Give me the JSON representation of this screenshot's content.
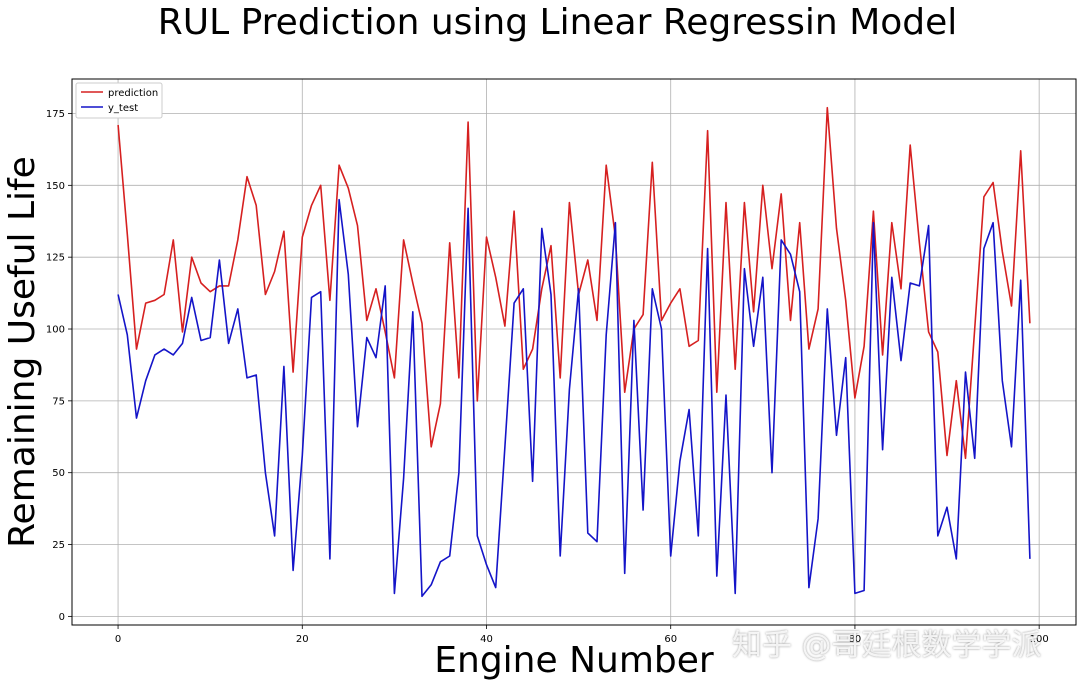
{
  "chart_data": {
    "type": "line",
    "title": "RUL Prediction using Linear Regressin Model",
    "xlabel": "Engine Number",
    "ylabel": "Remaining Useful Life",
    "xlim": [
      -5,
      104
    ],
    "ylim": [
      -3,
      187
    ],
    "x_ticks": [
      "0",
      "20",
      "40",
      "60",
      "80",
      "100"
    ],
    "y_ticks": [
      "0",
      "25",
      "50",
      "75",
      "100",
      "125",
      "150",
      "175"
    ],
    "grid": true,
    "legend_position": "upper-left",
    "series": [
      {
        "name": "prediction",
        "color": "#d62020",
        "values": [
          171,
          133,
          93,
          109,
          110,
          112,
          131,
          99,
          125,
          116,
          113,
          115,
          115,
          131,
          153,
          143,
          112,
          120,
          134,
          85,
          132,
          143,
          150,
          110,
          157,
          149,
          136,
          103,
          114,
          99,
          83,
          131,
          116,
          102,
          59,
          74,
          130,
          83,
          172,
          75,
          132,
          118,
          101,
          141,
          86,
          93,
          114,
          129,
          83,
          144,
          112,
          124,
          103,
          157,
          132,
          78,
          100,
          105,
          158,
          103,
          109,
          114,
          94,
          96,
          169,
          78,
          144,
          86,
          144,
          106,
          150,
          121,
          147,
          103,
          137,
          93,
          107,
          177,
          135,
          110,
          76,
          94,
          141,
          91,
          137,
          114,
          164,
          130,
          99,
          92,
          56,
          82,
          55,
          100,
          146,
          151,
          127,
          108,
          162,
          102
        ]
      },
      {
        "name": "y_test",
        "color": "#1414c8",
        "values": [
          112,
          98,
          69,
          82,
          91,
          93,
          91,
          95,
          111,
          96,
          97,
          124,
          95,
          107,
          83,
          84,
          50,
          28,
          87,
          16,
          56,
          111,
          113,
          20,
          145,
          119,
          66,
          97,
          90,
          115,
          8,
          48,
          106,
          7,
          11,
          19,
          21,
          50,
          142,
          28,
          18,
          10,
          59,
          109,
          114,
          47,
          135,
          112,
          21,
          79,
          114,
          29,
          26,
          98,
          137,
          15,
          103,
          37,
          114,
          100,
          21,
          54,
          72,
          28,
          128,
          14,
          77,
          8,
          121,
          94,
          118,
          50,
          131,
          126,
          113,
          10,
          34,
          107,
          63,
          90,
          8,
          9,
          137,
          58,
          118,
          89,
          116,
          115,
          136,
          28,
          38,
          20,
          85,
          55,
          128,
          137,
          82,
          59,
          117,
          20
        ]
      }
    ]
  },
  "watermark": "知乎 @哥廷根数学学派"
}
